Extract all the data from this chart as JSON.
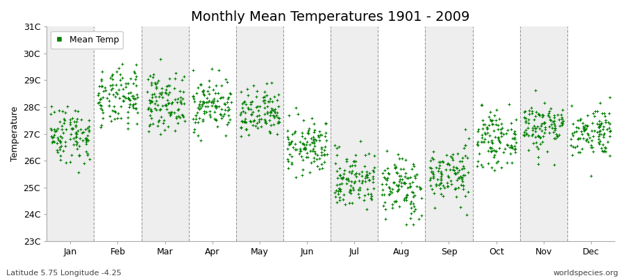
{
  "title": "Monthly Mean Temperatures 1901 - 2009",
  "ylabel": "Temperature",
  "bottom_left_text": "Latitude 5.75 Longitude -4.25",
  "bottom_right_text": "worldspecies.org",
  "legend_label": "Mean Temp",
  "months": [
    "Jan",
    "Feb",
    "Mar",
    "Apr",
    "May",
    "Jun",
    "Jul",
    "Aug",
    "Sep",
    "Oct",
    "Nov",
    "Dec"
  ],
  "ylim": [
    23,
    31
  ],
  "yticks": [
    23,
    24,
    25,
    26,
    27,
    28,
    29,
    30,
    31
  ],
  "ytick_labels": [
    "23C",
    "24C",
    "25C",
    "26C",
    "27C",
    "28C",
    "29C",
    "30C",
    "31C"
  ],
  "years": 109,
  "monthly_means": [
    27.0,
    28.3,
    28.2,
    28.1,
    27.7,
    26.5,
    25.3,
    25.0,
    25.5,
    26.8,
    27.3,
    27.1
  ],
  "monthly_stds": [
    0.55,
    0.55,
    0.52,
    0.5,
    0.48,
    0.5,
    0.55,
    0.6,
    0.52,
    0.48,
    0.48,
    0.48
  ],
  "dot_color": "#008000",
  "dot_size": 5,
  "background_color": "#ffffff",
  "plot_bg_color": "#ffffff",
  "alt_band_color": "#eeeeee",
  "dashed_line_color": "#999999",
  "title_fontsize": 14,
  "axis_label_fontsize": 9,
  "tick_fontsize": 9,
  "random_seed": 42
}
